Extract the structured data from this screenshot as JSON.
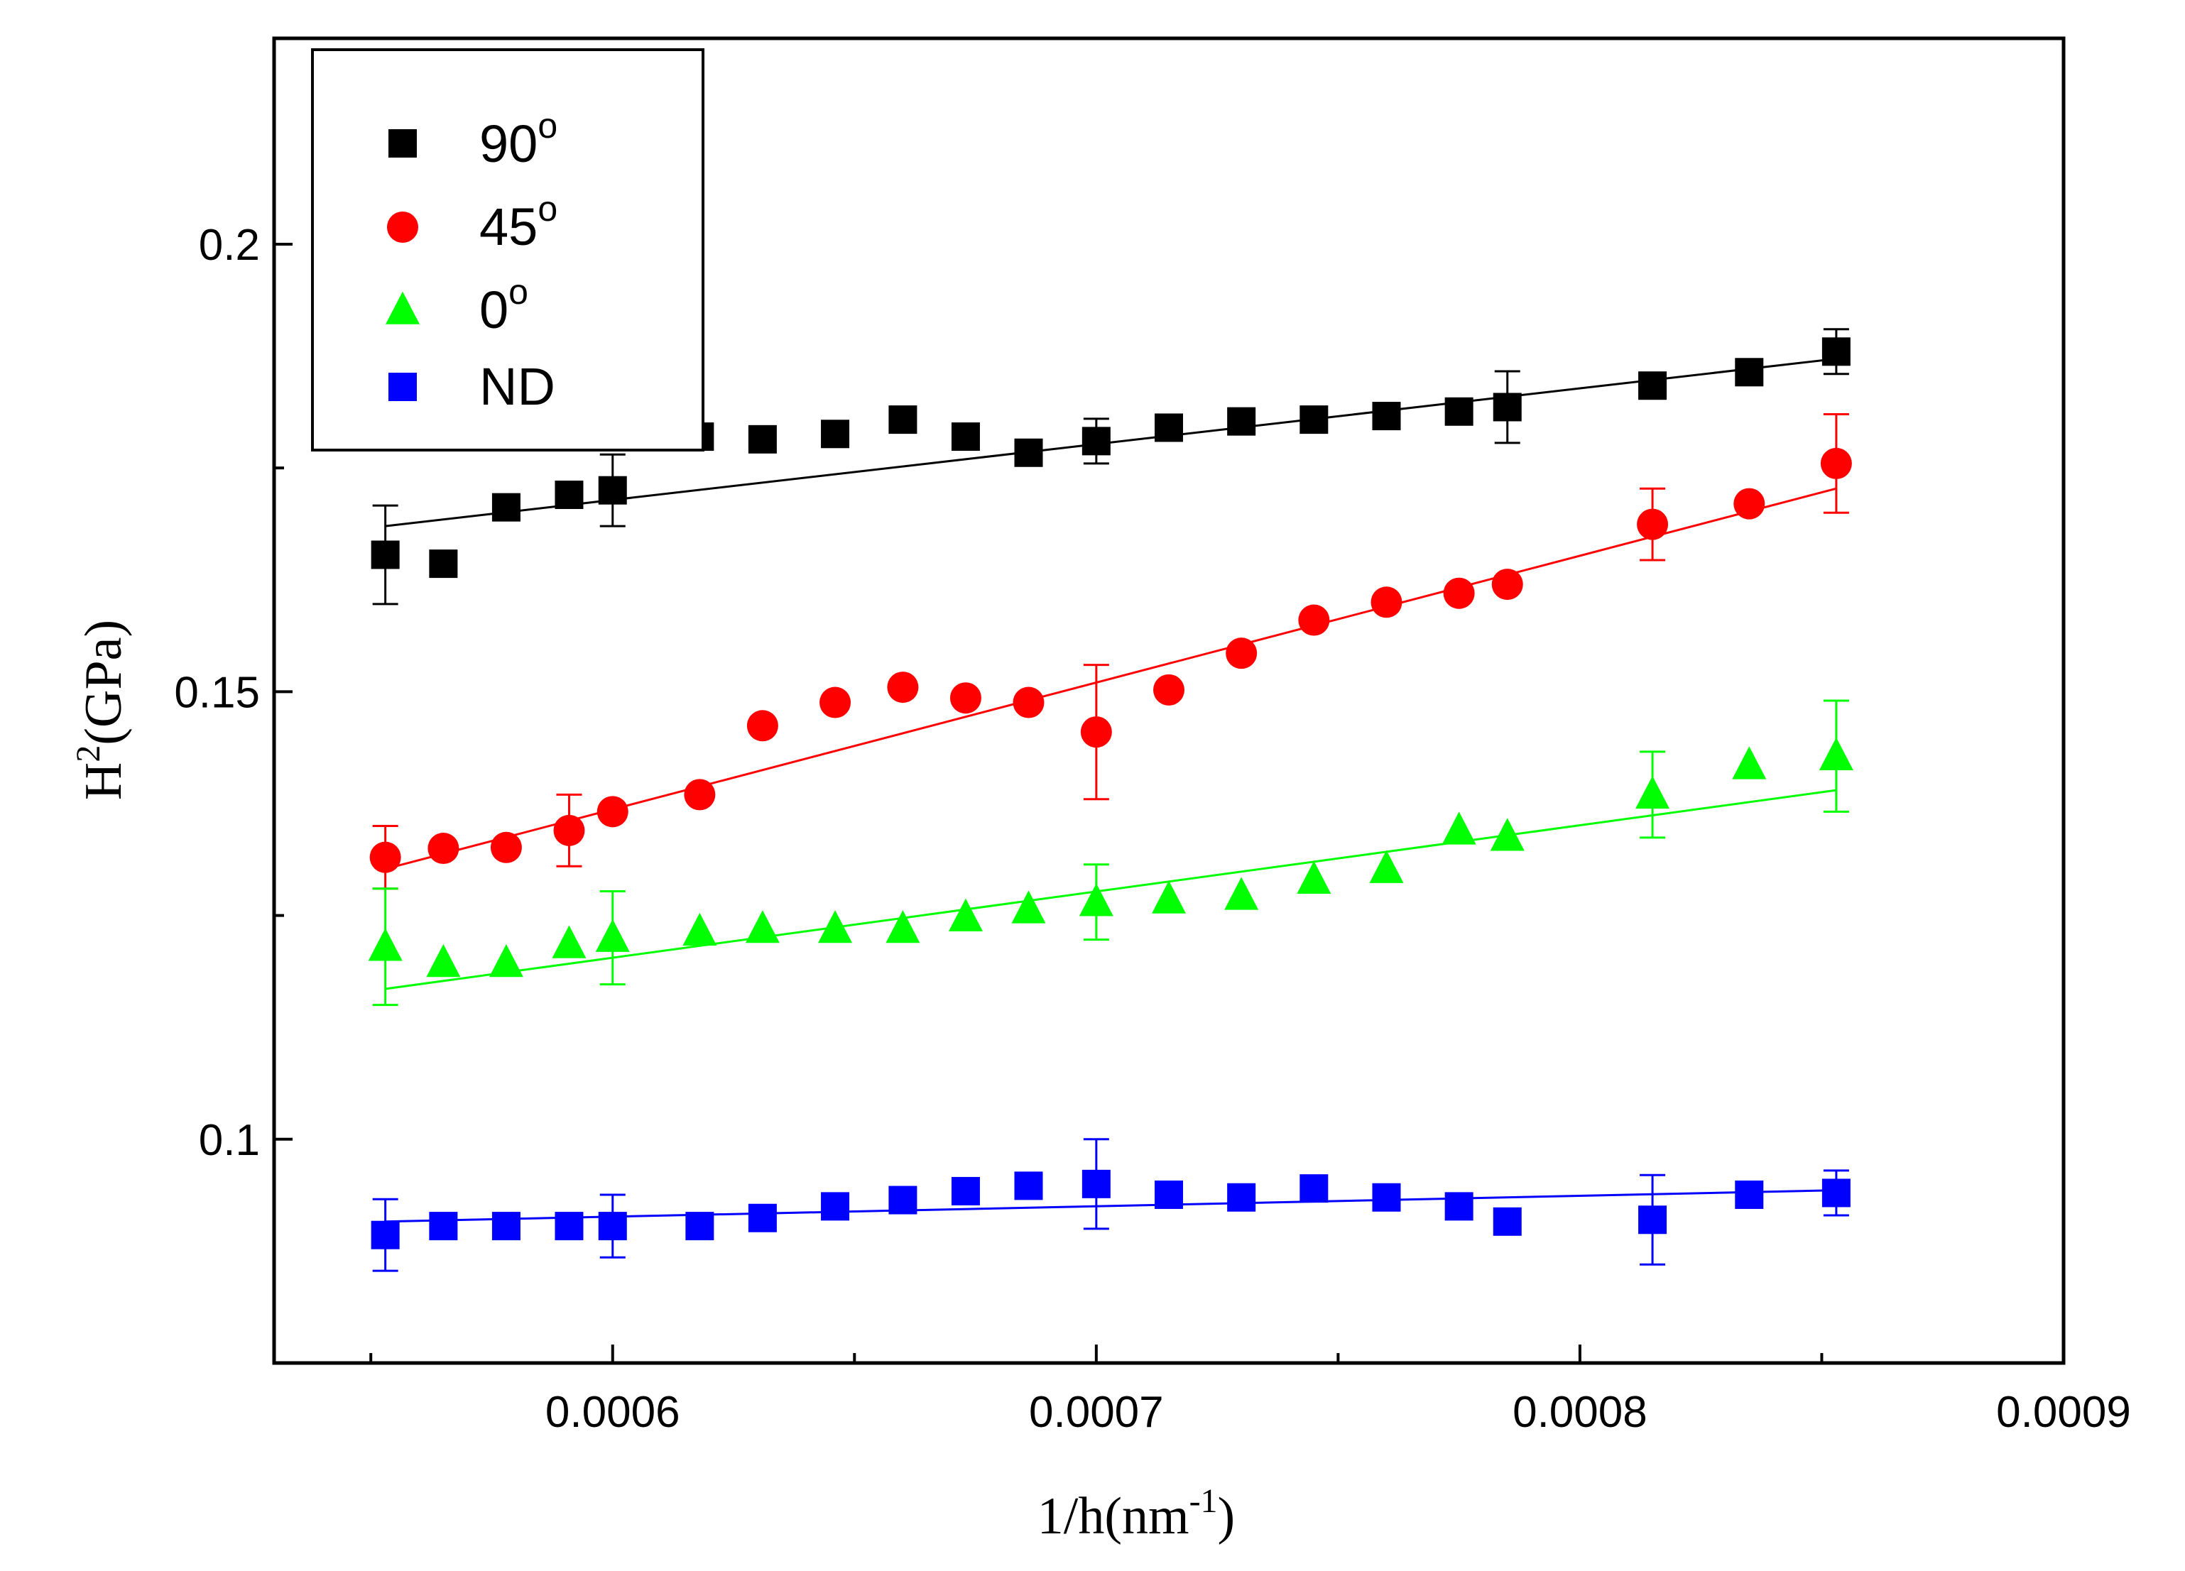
{
  "chart_data": {
    "type": "scatter",
    "title": "",
    "xlabel": "1/h(nm⁻¹)",
    "ylabel": "H²(GPa)",
    "xlabel_parts": {
      "main": "1/h(nm",
      "sup": "-1",
      "close": ")"
    },
    "ylabel_parts": {
      "main": "H",
      "sup": "2",
      "rest": "(GPa)"
    },
    "xlim": [
      0.00053,
      0.0009
    ],
    "ylim": [
      0.075,
      0.223
    ],
    "x_ticks": [
      {
        "value": 0.0006,
        "label": "0.0006"
      },
      {
        "value": 0.0007,
        "label": "0.0007"
      },
      {
        "value": 0.0008,
        "label": "0.0008"
      },
      {
        "value": 0.0009,
        "label": "0.0009"
      }
    ],
    "x_minor_ticks": [
      0.00055,
      0.00065,
      0.00075,
      0.00085
    ],
    "y_ticks": [
      {
        "value": 0.1,
        "label": "0.1"
      },
      {
        "value": 0.15,
        "label": "0.15"
      },
      {
        "value": 0.2,
        "label": "0.2"
      }
    ],
    "y_minor_ticks": [
      0.125,
      0.175
    ],
    "grid": false,
    "legend_position": "top-left",
    "series": [
      {
        "name": "90°",
        "legend_main": "90",
        "legend_sup": "o",
        "color": "#000000",
        "marker": "square",
        "x": [
          0.000553,
          0.000565,
          0.000578,
          0.000591,
          0.0006,
          0.000618,
          0.000631,
          0.000646,
          0.00066,
          0.000673,
          0.000686,
          0.0007,
          0.000715,
          0.00073,
          0.000745,
          0.00076,
          0.000775,
          0.000785,
          0.000815,
          0.000835,
          0.000853
        ],
        "y": [
          0.1653,
          0.1643,
          0.1706,
          0.172,
          0.1725,
          0.1785,
          0.1782,
          0.1788,
          0.1804,
          0.1785,
          0.1767,
          0.178,
          0.1795,
          0.1802,
          0.1804,
          0.1808,
          0.1813,
          0.1818,
          0.1842,
          0.1857,
          0.188
        ],
        "errors": [
          {
            "x": 0.000553,
            "y": 0.1653,
            "err": 0.0055
          },
          {
            "x": 0.0006,
            "y": 0.1725,
            "err": 0.004
          },
          {
            "x": 0.0007,
            "y": 0.178,
            "err": 0.0025
          },
          {
            "x": 0.000785,
            "y": 0.1818,
            "err": 0.004
          },
          {
            "x": 0.000853,
            "y": 0.188,
            "err": 0.0025
          }
        ],
        "fit": {
          "x": [
            0.000553,
            0.000853
          ],
          "y": [
            0.1685,
            0.1872
          ]
        }
      },
      {
        "name": "45°",
        "legend_main": "45",
        "legend_sup": "o",
        "color": "#ff0000",
        "marker": "circle",
        "x": [
          0.000553,
          0.000565,
          0.000578,
          0.000591,
          0.0006,
          0.000618,
          0.000631,
          0.000646,
          0.00066,
          0.000673,
          0.000686,
          0.0007,
          0.000715,
          0.00073,
          0.000745,
          0.00076,
          0.000775,
          0.000785,
          0.000815,
          0.000835,
          0.000853
        ],
        "y": [
          0.1315,
          0.1325,
          0.1326,
          0.1345,
          0.1366,
          0.1385,
          0.1462,
          0.1488,
          0.1505,
          0.1493,
          0.1488,
          0.1455,
          0.1502,
          0.1543,
          0.158,
          0.16,
          0.161,
          0.162,
          0.1687,
          0.171,
          0.1755
        ],
        "errors": [
          {
            "x": 0.000553,
            "y": 0.1315,
            "err": 0.0035
          },
          {
            "x": 0.000591,
            "y": 0.1345,
            "err": 0.004
          },
          {
            "x": 0.0007,
            "y": 0.1455,
            "err": 0.0075
          },
          {
            "x": 0.000815,
            "y": 0.1687,
            "err": 0.004
          },
          {
            "x": 0.000853,
            "y": 0.1755,
            "err": 0.0055
          }
        ],
        "fit": {
          "x": [
            0.000553,
            0.000853
          ],
          "y": [
            0.1302,
            0.1727
          ]
        }
      },
      {
        "name": "0°",
        "legend_main": "0",
        "legend_sup": "o",
        "color": "#00ff00",
        "marker": "triangle",
        "x": [
          0.000553,
          0.000565,
          0.000578,
          0.000591,
          0.0006,
          0.000618,
          0.000631,
          0.000646,
          0.00066,
          0.000673,
          0.000686,
          0.0007,
          0.000715,
          0.00073,
          0.000745,
          0.00076,
          0.000775,
          0.000785,
          0.000815,
          0.000835,
          0.000853
        ],
        "y": [
          0.1215,
          0.1197,
          0.1197,
          0.1218,
          0.1225,
          0.1232,
          0.1235,
          0.1235,
          0.1235,
          0.1248,
          0.1257,
          0.1265,
          0.1268,
          0.1272,
          0.129,
          0.1302,
          0.1345,
          0.1338,
          0.1385,
          0.1418,
          0.1428
        ],
        "errors": [
          {
            "x": 0.000553,
            "y": 0.1215,
            "err": 0.0065
          },
          {
            "x": 0.0006,
            "y": 0.1225,
            "err": 0.0052
          },
          {
            "x": 0.0007,
            "y": 0.1265,
            "err": 0.0042
          },
          {
            "x": 0.000815,
            "y": 0.1385,
            "err": 0.0048
          },
          {
            "x": 0.000853,
            "y": 0.1428,
            "err": 0.0062
          }
        ],
        "fit": {
          "x": [
            0.000553,
            0.000853
          ],
          "y": [
            0.1168,
            0.139
          ]
        }
      },
      {
        "name": "ND",
        "legend_main": "ND",
        "legend_sup": "",
        "color": "#0000ff",
        "marker": "square",
        "x": [
          0.000553,
          0.000565,
          0.000578,
          0.000591,
          0.0006,
          0.000618,
          0.000631,
          0.000646,
          0.00066,
          0.000673,
          0.000686,
          0.0007,
          0.000715,
          0.00073,
          0.000745,
          0.00076,
          0.000775,
          0.000785,
          0.000815,
          0.000835,
          0.000853
        ],
        "y": [
          0.0893,
          0.0903,
          0.0903,
          0.0903,
          0.0903,
          0.0903,
          0.0912,
          0.0925,
          0.0932,
          0.0942,
          0.0948,
          0.095,
          0.0938,
          0.0935,
          0.0945,
          0.0935,
          0.0925,
          0.0908,
          0.091,
          0.0938,
          0.094
        ],
        "errors": [
          {
            "x": 0.000553,
            "y": 0.0893,
            "err": 0.004
          },
          {
            "x": 0.0006,
            "y": 0.0903,
            "err": 0.0035
          },
          {
            "x": 0.0007,
            "y": 0.095,
            "err": 0.005
          },
          {
            "x": 0.000815,
            "y": 0.091,
            "err": 0.005
          },
          {
            "x": 0.000853,
            "y": 0.094,
            "err": 0.0025
          }
        ],
        "fit": {
          "x": [
            0.000553,
            0.000853
          ],
          "y": [
            0.0908,
            0.0943
          ]
        }
      }
    ]
  }
}
